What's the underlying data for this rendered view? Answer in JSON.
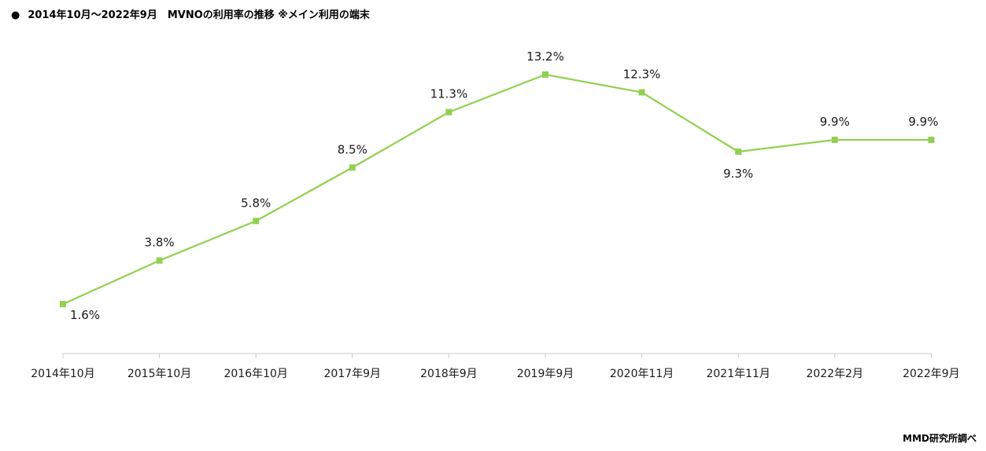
{
  "title": "2014年10月～2022年9月　MVNOの利用率の推移 ※メイン利用の端末",
  "credit": "MMD研究所調べ",
  "colors": {
    "line": "#92d050",
    "marker": "#92d050",
    "axis": "#c8c8c8"
  },
  "chart_data": {
    "type": "line",
    "title": "2014年10月～2022年9月　MVNOの利用率の推移 ※メイン利用の端末",
    "xlabel": "",
    "ylabel": "",
    "categories": [
      "2014年10月",
      "2015年10月",
      "2016年10月",
      "2017年9月",
      "2018年9月",
      "2019年9月",
      "2020年11月",
      "2021年11月",
      "2022年2月",
      "2022年9月"
    ],
    "series": [
      {
        "values": [
          1.6,
          3.8,
          5.8,
          8.5,
          11.3,
          13.2,
          12.3,
          9.3,
          9.9,
          9.9
        ]
      }
    ],
    "data_labels": [
      "1.6%",
      "3.8%",
      "5.8%",
      "8.5%",
      "11.3%",
      "13.2%",
      "12.3%",
      "9.3%",
      "9.9%",
      "9.9%"
    ],
    "ylim": [
      -0.9,
      15.3
    ],
    "grid": false,
    "legend": "none"
  }
}
